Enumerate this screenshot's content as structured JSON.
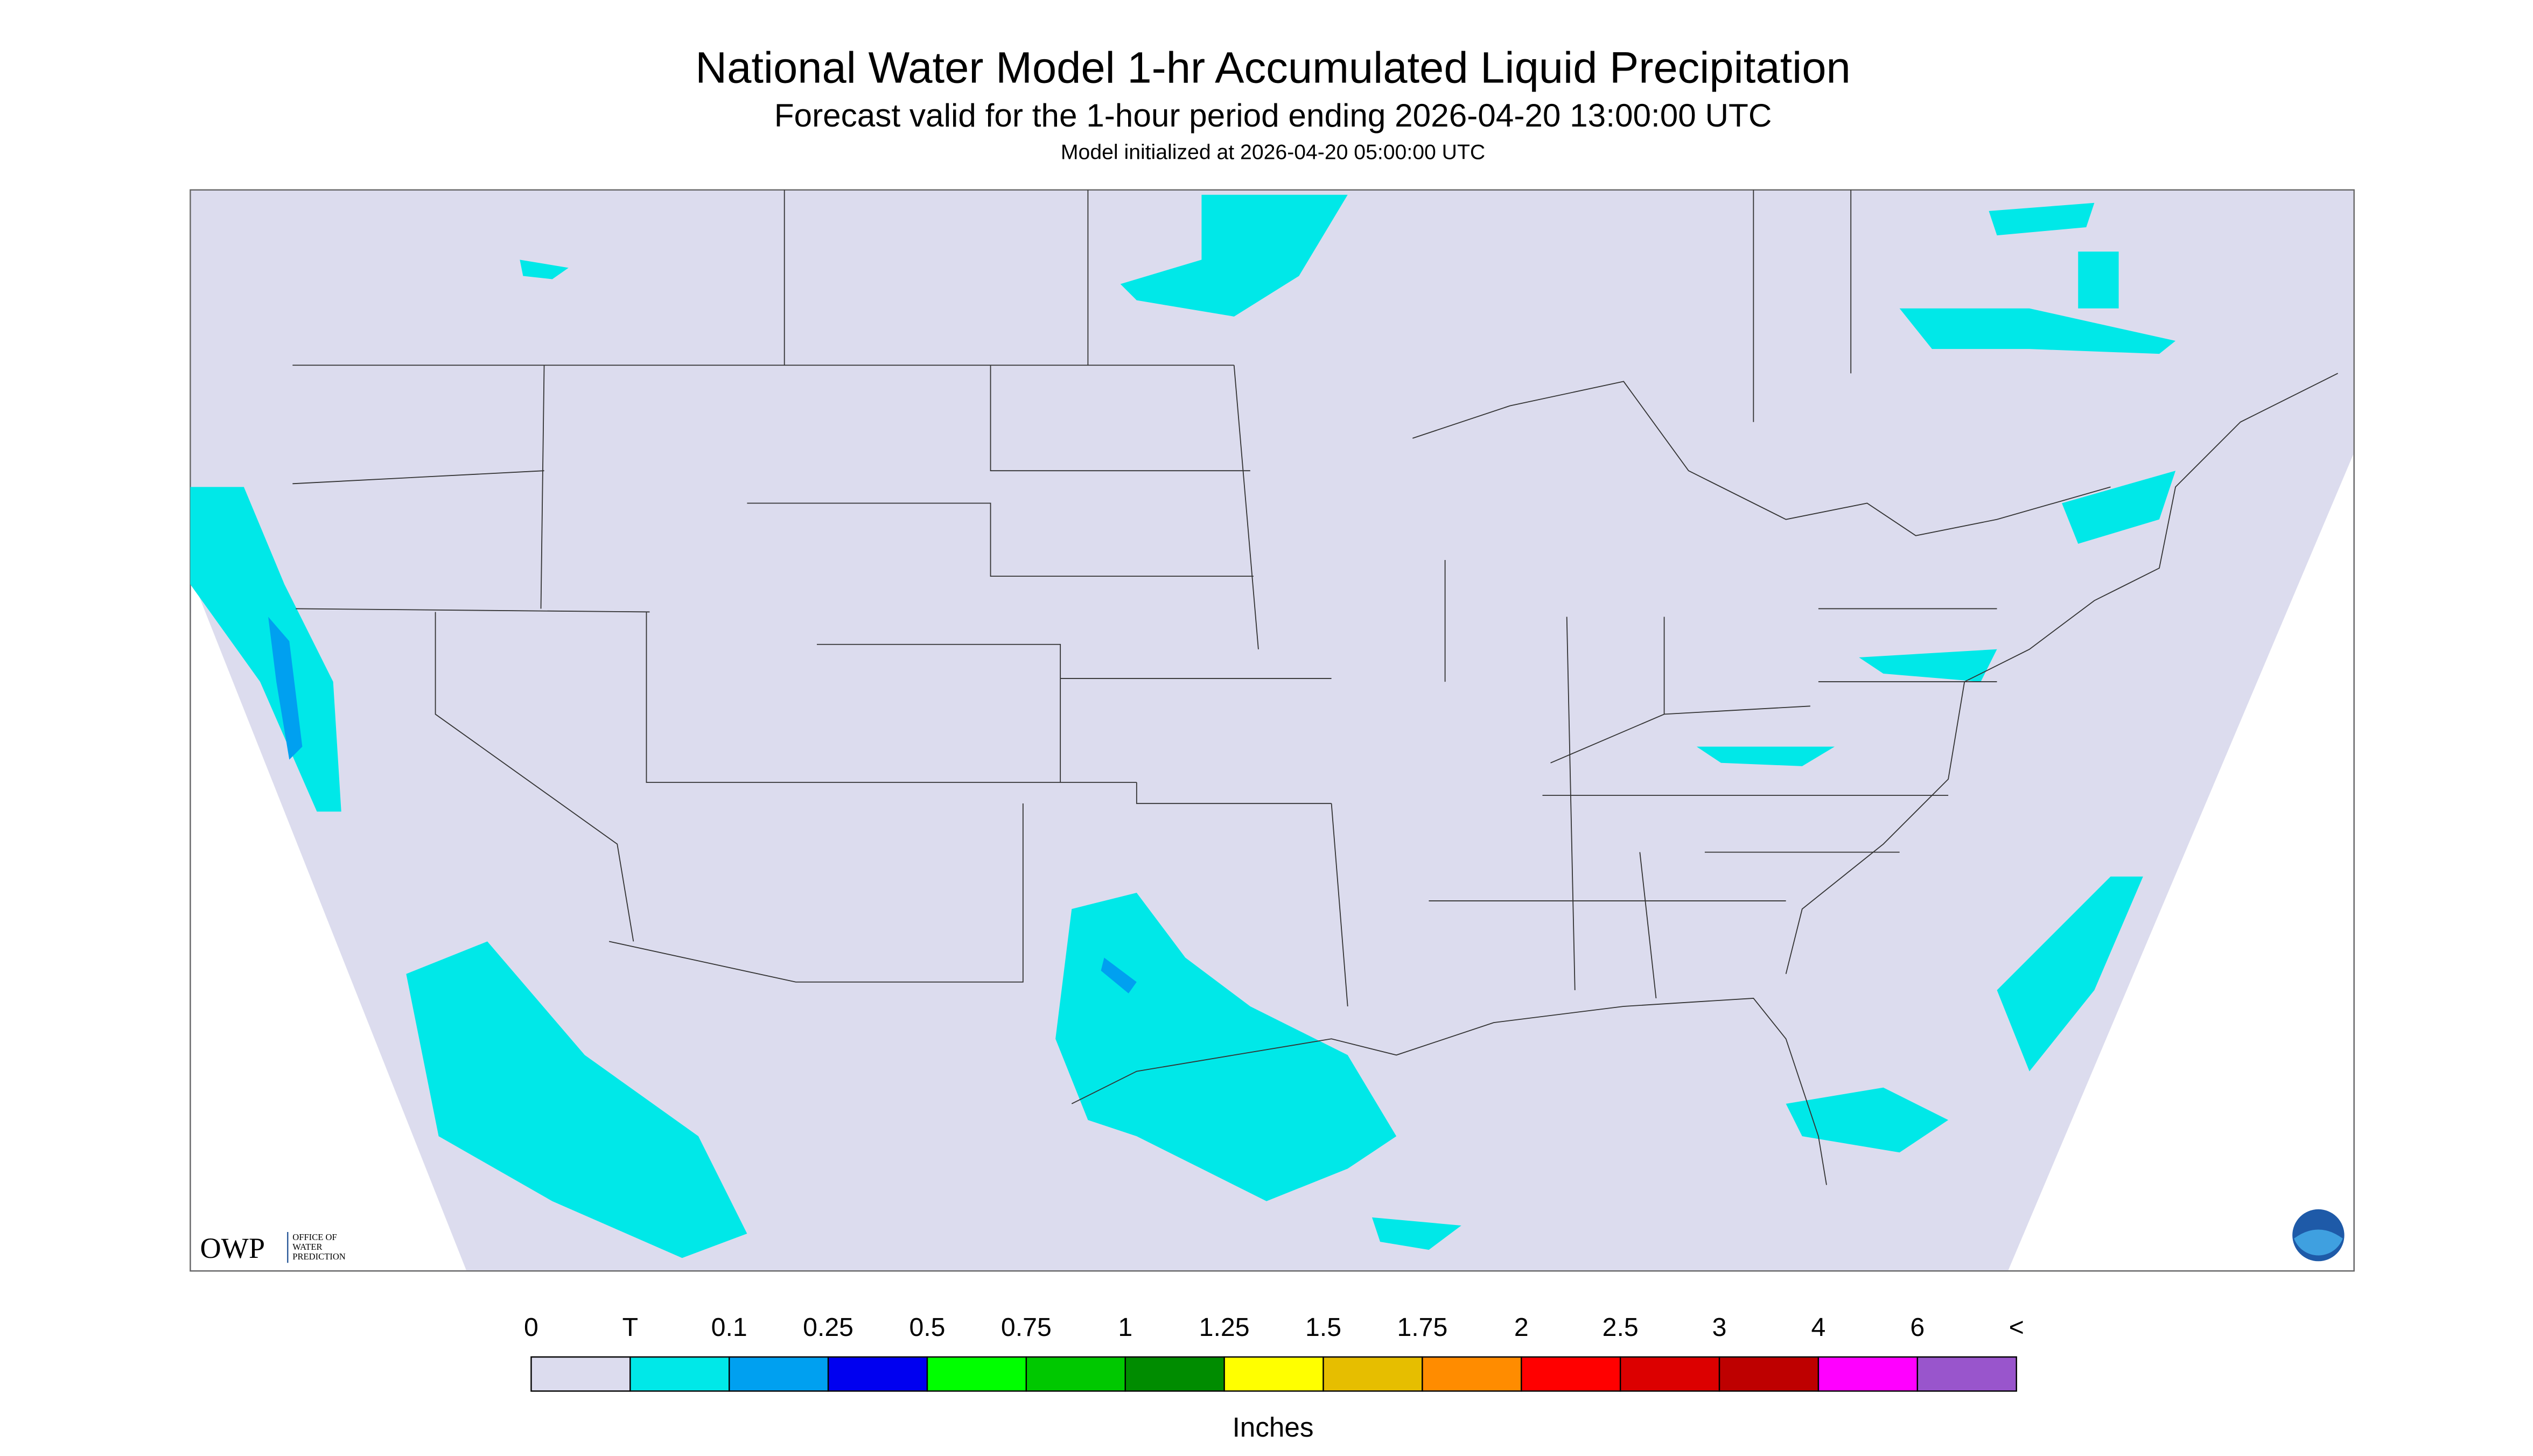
{
  "header": {
    "title": "National Water Model 1-hr Accumulated Liquid Precipitation",
    "subtitle": "Forecast valid for the 1-hour period ending 2026-04-20 13:00:00 UTC",
    "note": "Model initialized at 2026-04-20 05:00:00 UTC"
  },
  "logo": {
    "name": "OWP",
    "lines": [
      "OFFICE OF",
      "WATER",
      "PREDICTION"
    ]
  },
  "legend": {
    "labels": [
      "0",
      "T",
      "0.1",
      "0.25",
      "0.5",
      "0.75",
      "1",
      "1.25",
      "1.5",
      "1.75",
      "2",
      "2.5",
      "3",
      "4",
      "6",
      "<"
    ],
    "colors": [
      "#dcdcee",
      "#00e8e8",
      "#00a0f0",
      "#0000f0",
      "#00ff00",
      "#00c800",
      "#008c00",
      "#ffff00",
      "#e6be00",
      "#ff8c00",
      "#ff0000",
      "#dc0000",
      "#be0000",
      "#ff00ff",
      "#9955cc"
    ],
    "unit": "Inches"
  }
}
